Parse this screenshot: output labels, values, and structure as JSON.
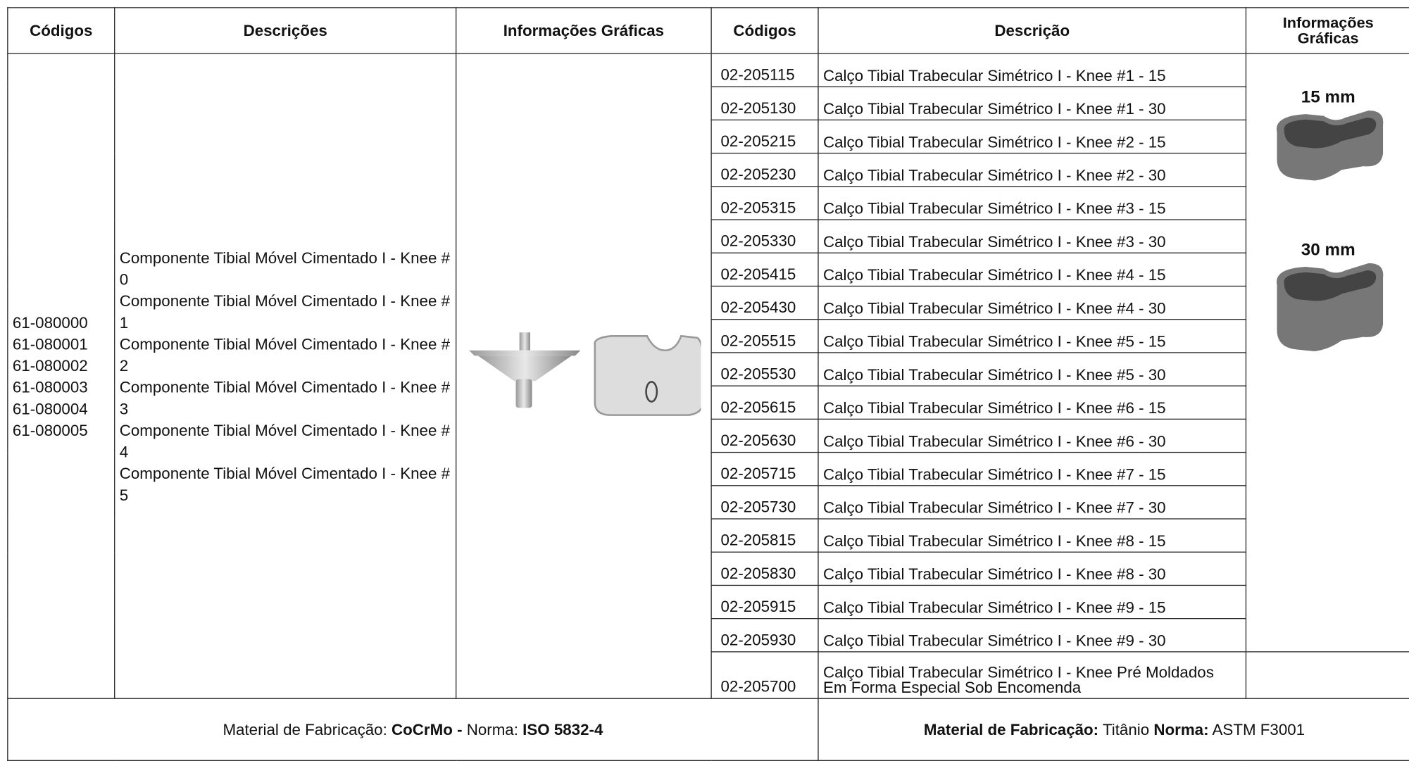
{
  "header": {
    "codes_left": "Códigos",
    "descriptions_left": "Descrições",
    "graphics_left": "Informações Gráficas",
    "codes_right": "Códigos",
    "description_right": "Descrição",
    "graphics_right": "Informações Gráficas"
  },
  "left": {
    "codes": [
      "61-080000",
      "61-080001",
      "61-080002",
      "61-080003",
      "61-080004",
      "61-080005"
    ],
    "descriptions": [
      "Componente Tibial Móvel Cimentado I - Knee # 0",
      "Componente Tibial Móvel Cimentado I - Knee # 1",
      "Componente Tibial Móvel Cimentado I - Knee # 2",
      "Componente Tibial Móvel Cimentado I - Knee # 3",
      "Componente Tibial Móvel Cimentado I - Knee # 4",
      "Componente Tibial Móvel Cimentado I - Knee # 5"
    ]
  },
  "right": {
    "rows": [
      [
        "02-205115",
        "Calço Tibial Trabecular Simétrico I - Knee #1 - 15"
      ],
      [
        "02-205130",
        "Calço Tibial Trabecular Simétrico I - Knee #1 - 30"
      ],
      [
        "02-205215",
        "Calço Tibial Trabecular Simétrico I - Knee #2 - 15"
      ],
      [
        "02-205230",
        "Calço Tibial Trabecular Simétrico I - Knee #2 - 30"
      ],
      [
        "02-205315",
        "Calço Tibial Trabecular Simétrico I - Knee #3 - 15"
      ],
      [
        "02-205330",
        "Calço Tibial Trabecular Simétrico I - Knee #3 - 30"
      ],
      [
        "02-205415",
        "Calço Tibial Trabecular Simétrico I - Knee #4 - 15"
      ],
      [
        "02-205430",
        "Calço Tibial Trabecular Simétrico I - Knee #4 - 30"
      ],
      [
        "02-205515",
        "Calço Tibial Trabecular Simétrico I - Knee #5 - 15"
      ],
      [
        "02-205530",
        "Calço Tibial Trabecular Simétrico I - Knee #5 - 30"
      ],
      [
        "02-205615",
        "Calço Tibial Trabecular Simétrico I - Knee #6 - 15"
      ],
      [
        "02-205630",
        "Calço Tibial Trabecular Simétrico I - Knee #6 - 30"
      ],
      [
        "02-205715",
        "Calço Tibial Trabecular Simétrico I - Knee #7 - 15"
      ],
      [
        "02-205730",
        "Calço Tibial Trabecular Simétrico I - Knee #7 - 30"
      ],
      [
        "02-205815",
        "Calço Tibial Trabecular Simétrico I - Knee #8 - 15"
      ],
      [
        "02-205830",
        "Calço Tibial Trabecular Simétrico I - Knee #8 - 30"
      ],
      [
        "02-205915",
        "Calço Tibial Trabecular Simétrico I - Knee #9 - 15"
      ],
      [
        "02-205930",
        "Calço Tibial Trabecular Simétrico I - Knee #9 - 30"
      ],
      [
        "02-205700",
        "Calço Tibial Trabecular Simétrico I - Knee Pré Moldados Em Forma Especial Sob Encomenda"
      ]
    ],
    "labels": [
      "15 mm",
      "30 mm"
    ]
  },
  "footer": {
    "left": [
      "Material de Fabricação: ",
      "CoCrMo -",
      " Norma: ",
      "ISO 5832-4"
    ],
    "right": [
      "Material de Fabricação:",
      " Titânio ",
      "Norma:",
      " ASTM F3001"
    ]
  }
}
